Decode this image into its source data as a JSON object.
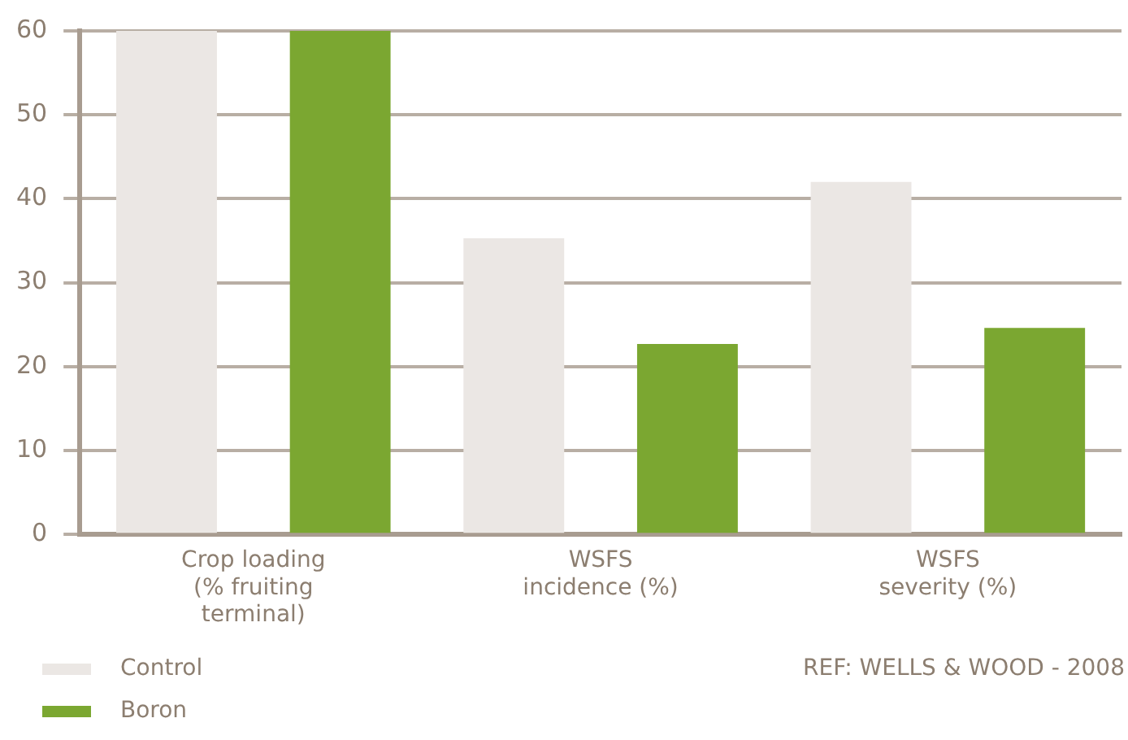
{
  "chart_data": {
    "type": "bar",
    "categories": [
      "Crop loading\n(% fruiting\nterminal)",
      "WSFS\nincidence (%)",
      "WSFS\nseverity (%)"
    ],
    "series": [
      {
        "name": "Control",
        "color": "#ebe7e4",
        "values": [
          60,
          35.3,
          42
        ]
      },
      {
        "name": "Boron",
        "color": "#7ba731",
        "values": [
          60,
          22.7,
          24.6
        ]
      }
    ],
    "ylim": [
      0,
      60
    ],
    "yticks": [
      0,
      10,
      20,
      30,
      40,
      50,
      60
    ],
    "grid": "y",
    "legend": "bottom left",
    "annotations": [
      "REF: WELLS & WOOD - 2008"
    ]
  }
}
